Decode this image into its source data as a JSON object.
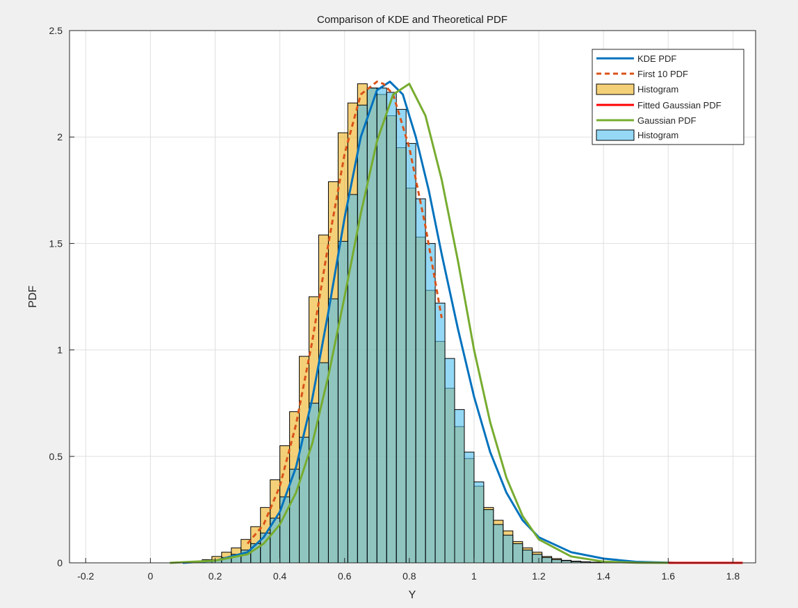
{
  "chart_data": {
    "type": "bar",
    "title": "Comparison of KDE and Theoretical PDF",
    "xlabel": "Y",
    "ylabel": "PDF",
    "xlim": [
      -0.25,
      1.87
    ],
    "ylim": [
      0,
      2.5
    ],
    "xticks": [
      -0.2,
      0,
      0.2,
      0.4,
      0.6,
      0.8,
      1,
      1.2,
      1.4,
      1.6,
      1.8
    ],
    "xtick_labels": [
      "-0.2",
      "0",
      "0.2",
      "0.4",
      "0.6",
      "0.8",
      "1",
      "1.2",
      "1.4",
      "1.6",
      "1.8"
    ],
    "yticks": [
      0,
      0.5,
      1,
      1.5,
      2,
      2.5
    ],
    "ytick_labels": [
      "0",
      "0.5",
      "1",
      "1.5",
      "2",
      "2.5"
    ],
    "grid": true,
    "legend_placement": "top-right",
    "legend": [
      "KDE PDF",
      "First 10 PDF",
      "Histogram",
      "Fitted Gaussian PDF",
      "Gaussian PDF",
      "Histogram"
    ],
    "colors": {
      "kde": "#0072bd",
      "first10": "#d95319",
      "hist1": "#edb120",
      "fitted": "#ff0000",
      "gaussian": "#77ac30",
      "hist2": "#4dbeee",
      "hist_overlap": "#7db8a8",
      "axes_bg": "#ffffff",
      "figure_bg": "#f0f0f0"
    },
    "histogram_1": {
      "name": "Histogram",
      "bin_width": 0.03,
      "start": 0.1,
      "values": [
        0.003,
        0.008,
        0.015,
        0.03,
        0.05,
        0.07,
        0.11,
        0.17,
        0.26,
        0.39,
        0.55,
        0.71,
        0.97,
        1.25,
        1.54,
        1.79,
        2.02,
        2.16,
        2.25,
        2.23,
        2.2,
        2.1,
        1.95,
        1.76,
        1.53,
        1.28,
        1.04,
        0.82,
        0.64,
        0.49,
        0.36,
        0.26,
        0.2,
        0.15,
        0.1,
        0.07,
        0.05,
        0.03,
        0.02,
        0.012,
        0.008,
        0.005,
        0.003,
        0.002,
        0.001
      ]
    },
    "histogram_2": {
      "name": "Histogram",
      "bin_width": 0.03,
      "start": 0.13,
      "values": [
        0.003,
        0.007,
        0.014,
        0.025,
        0.04,
        0.06,
        0.09,
        0.14,
        0.21,
        0.31,
        0.44,
        0.59,
        0.75,
        0.94,
        1.24,
        1.51,
        1.73,
        2.15,
        2.23,
        2.23,
        2.21,
        2.13,
        1.97,
        1.71,
        1.5,
        1.22,
        0.96,
        0.72,
        0.52,
        0.38,
        0.25,
        0.18,
        0.13,
        0.09,
        0.06,
        0.04,
        0.025,
        0.015,
        0.01,
        0.006,
        0.004,
        0.002
      ]
    },
    "series": [
      {
        "name": "KDE PDF",
        "x": [
          0.1,
          0.2,
          0.3,
          0.35,
          0.4,
          0.45,
          0.5,
          0.55,
          0.6,
          0.65,
          0.7,
          0.74,
          0.78,
          0.82,
          0.86,
          0.9,
          0.95,
          1.0,
          1.05,
          1.1,
          1.15,
          1.2,
          1.3,
          1.4,
          1.5,
          1.62
        ],
        "y": [
          0.0,
          0.01,
          0.05,
          0.12,
          0.24,
          0.45,
          0.77,
          1.18,
          1.62,
          2.0,
          2.22,
          2.26,
          2.2,
          2.0,
          1.75,
          1.45,
          1.1,
          0.78,
          0.52,
          0.33,
          0.2,
          0.12,
          0.05,
          0.02,
          0.005,
          0.0
        ]
      },
      {
        "name": "First 10 PDF",
        "x": [
          0.3,
          0.35,
          0.4,
          0.45,
          0.5,
          0.55,
          0.6,
          0.65,
          0.7,
          0.72,
          0.75,
          0.8,
          0.85,
          0.9
        ],
        "y": [
          0.09,
          0.18,
          0.36,
          0.65,
          1.04,
          1.5,
          1.92,
          2.2,
          2.26,
          2.25,
          2.2,
          1.95,
          1.58,
          1.15
        ]
      },
      {
        "name": "Fitted Gaussian PDF",
        "x": [
          1.6,
          1.7,
          1.8,
          1.83
        ],
        "y": [
          0.0,
          0.0,
          0.0,
          0.0
        ]
      },
      {
        "name": "Gaussian PDF",
        "x": [
          0.06,
          0.2,
          0.3,
          0.35,
          0.4,
          0.45,
          0.5,
          0.55,
          0.6,
          0.65,
          0.7,
          0.75,
          0.8,
          0.85,
          0.9,
          0.95,
          1.0,
          1.05,
          1.1,
          1.15,
          1.2,
          1.3,
          1.4,
          1.5,
          1.6
        ],
        "y": [
          0.0,
          0.01,
          0.04,
          0.09,
          0.18,
          0.33,
          0.56,
          0.88,
          1.25,
          1.64,
          1.98,
          2.2,
          2.25,
          2.1,
          1.8,
          1.42,
          1.0,
          0.66,
          0.4,
          0.22,
          0.11,
          0.03,
          0.006,
          0.001,
          0.0
        ]
      }
    ]
  }
}
